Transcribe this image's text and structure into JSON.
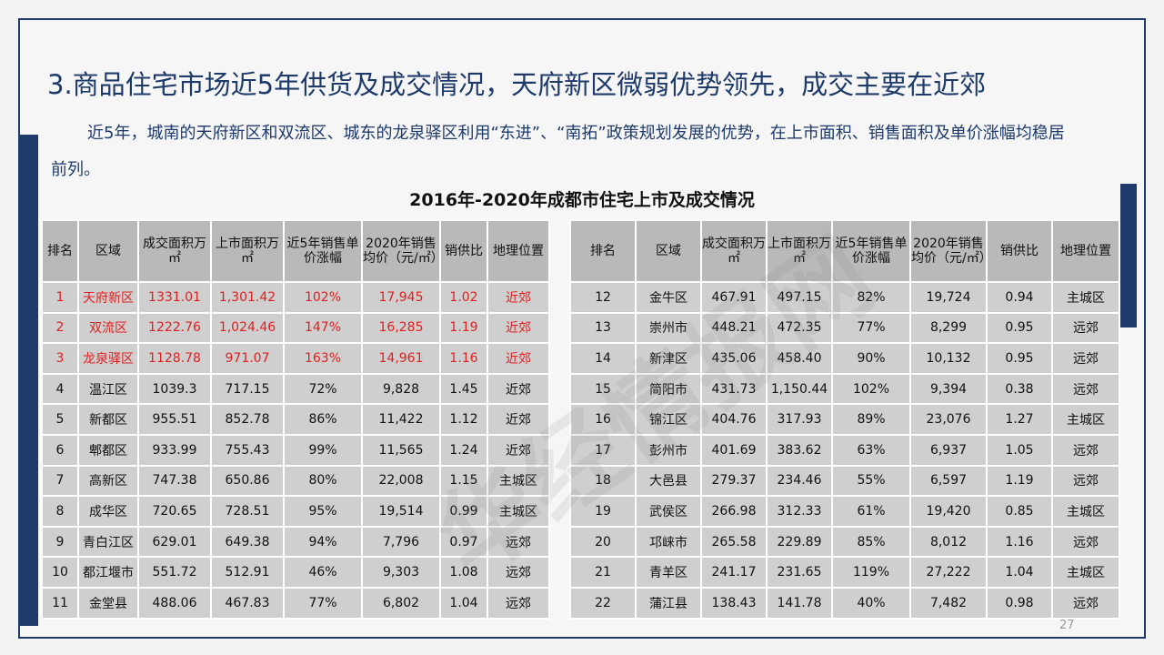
{
  "title": "3.商品住宅市场近5年供货及成交情况，天府新区微弱优势领先，成交主要在近郊",
  "intro": "近5年，城南的天府新区和双流区、城东的龙泉驿区利用“东进”、“南拓”政策规划发展的优势，在上市面积、销售面积及单价涨幅均稳居前列。",
  "table_title": "2016年-2020年成都市住宅上市及成交情况",
  "watermark": "华经情报网",
  "page_number": "27",
  "highlight_color": "#e02020",
  "left_headers": [
    "排名",
    "区域",
    "成交面积万㎡",
    "上市面积万㎡",
    "近5年销售单价涨幅",
    "2020年销售均价（元/㎡）",
    "销供比",
    "地理位置"
  ],
  "right_headers": [
    "排名",
    "区域",
    "成交面积万㎡",
    "上市面积万㎡",
    "近5年销售单价涨幅",
    "2020年销售均价（元/㎡）",
    "销供比",
    "地理位置"
  ],
  "left_rows": [
    [
      "1",
      "天府新区",
      "1331.01",
      "1,301.42",
      "102%",
      "17,945",
      "1.02",
      "近郊"
    ],
    [
      "2",
      "双流区",
      "1222.76",
      "1,024.46",
      "147%",
      "16,285",
      "1.19",
      "近郊"
    ],
    [
      "3",
      "龙泉驿区",
      "1128.78",
      "971.07",
      "163%",
      "14,961",
      "1.16",
      "近郊"
    ],
    [
      "4",
      "温江区",
      "1039.3",
      "717.15",
      "72%",
      "9,828",
      "1.45",
      "近郊"
    ],
    [
      "5",
      "新都区",
      "955.51",
      "852.78",
      "86%",
      "11,422",
      "1.12",
      "近郊"
    ],
    [
      "6",
      "郫都区",
      "933.99",
      "755.43",
      "99%",
      "11,565",
      "1.24",
      "近郊"
    ],
    [
      "7",
      "高新区",
      "747.38",
      "650.86",
      "80%",
      "22,008",
      "1.15",
      "主城区"
    ],
    [
      "8",
      "成华区",
      "720.65",
      "728.51",
      "95%",
      "19,514",
      "0.99",
      "主城区"
    ],
    [
      "9",
      "青白江区",
      "629.01",
      "649.38",
      "94%",
      "7,796",
      "0.97",
      "远郊"
    ],
    [
      "10",
      "都江堰市",
      "551.72",
      "512.91",
      "46%",
      "9,303",
      "1.08",
      "远郊"
    ],
    [
      "11",
      "金堂县",
      "488.06",
      "467.83",
      "77%",
      "6,802",
      "1.04",
      "远郊"
    ]
  ],
  "right_rows": [
    [
      "12",
      "金牛区",
      "467.91",
      "497.15",
      "82%",
      "19,724",
      "0.94",
      "主城区"
    ],
    [
      "13",
      "崇州市",
      "448.21",
      "472.35",
      "77%",
      "8,299",
      "0.95",
      "远郊"
    ],
    [
      "14",
      "新津区",
      "435.06",
      "458.40",
      "90%",
      "10,132",
      "0.95",
      "远郊"
    ],
    [
      "15",
      "简阳市",
      "431.73",
      "1,150.44",
      "102%",
      "9,394",
      "0.38",
      "远郊"
    ],
    [
      "16",
      "锦江区",
      "404.76",
      "317.93",
      "89%",
      "23,076",
      "1.27",
      "主城区"
    ],
    [
      "17",
      "彭州市",
      "401.69",
      "383.62",
      "63%",
      "6,937",
      "1.05",
      "远郊"
    ],
    [
      "18",
      "大邑县",
      "279.37",
      "234.46",
      "55%",
      "6,597",
      "1.19",
      "远郊"
    ],
    [
      "19",
      "武侯区",
      "266.98",
      "312.33",
      "61%",
      "19,420",
      "0.85",
      "主城区"
    ],
    [
      "20",
      "邛崃市",
      "265.58",
      "229.89",
      "85%",
      "8,012",
      "1.16",
      "远郊"
    ],
    [
      "21",
      "青羊区",
      "241.17",
      "231.65",
      "119%",
      "27,222",
      "1.04",
      "主城区"
    ],
    [
      "22",
      "蒲江县",
      "138.43",
      "141.78",
      "40%",
      "7,482",
      "0.98",
      "远郊"
    ]
  ]
}
